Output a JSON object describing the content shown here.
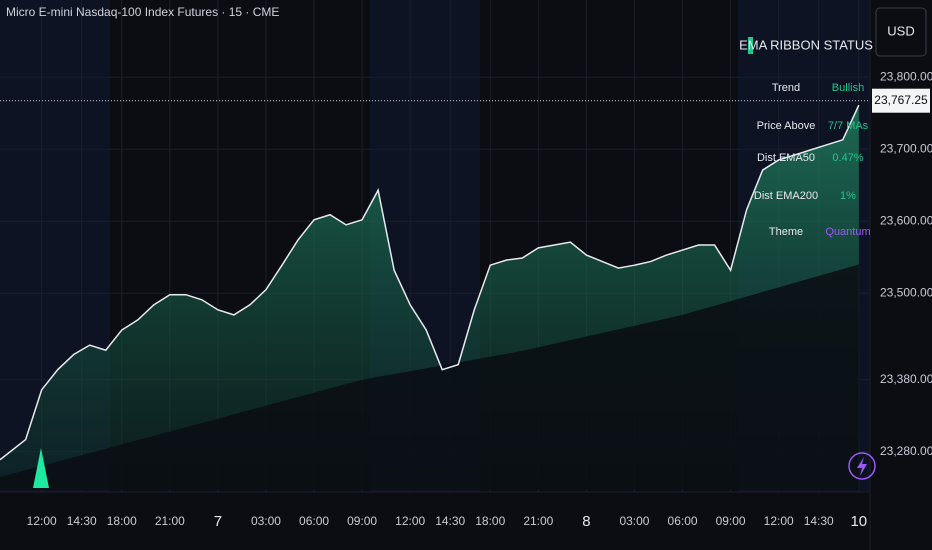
{
  "header": {
    "title": "Micro E-mini Nasdaq-100 Index Futures · 15 · CME",
    "currency": "USD"
  },
  "status_panel": {
    "title": "EMA RIBBON  STATUS",
    "rows": [
      [
        "Trend",
        "Bullish"
      ],
      [
        "Price Above",
        "7/7 MAs"
      ],
      [
        "Dist EMA50",
        "0.47%"
      ],
      [
        "Dist EMA200",
        "1%"
      ],
      [
        "Theme",
        "Quantum"
      ]
    ]
  },
  "chart_data": {
    "type": "line",
    "xlim": [
      -2.6,
      51.7
    ],
    "ylim": [
      23227,
      23907
    ],
    "xticks": [
      {
        "value": 0,
        "label": "12:00"
      },
      {
        "value": 2.5,
        "label": "14:30"
      },
      {
        "value": 5,
        "label": "18:00"
      },
      {
        "value": 8,
        "label": "21:00"
      },
      {
        "value": 11,
        "label": "7"
      },
      {
        "value": 14,
        "label": "03:00"
      },
      {
        "value": 17,
        "label": "06:00"
      },
      {
        "value": 20,
        "label": "09:00"
      },
      {
        "value": 23,
        "label": "12:00"
      },
      {
        "value": 25.5,
        "label": "14:30"
      },
      {
        "value": 28,
        "label": "18:00"
      },
      {
        "value": 31,
        "label": "21:00"
      },
      {
        "value": 34,
        "label": "8"
      },
      {
        "value": 37,
        "label": "03:00"
      },
      {
        "value": 40,
        "label": "06:00"
      },
      {
        "value": 43,
        "label": "09:00"
      },
      {
        "value": 46,
        "label": "12:00"
      },
      {
        "value": 48.5,
        "label": "14:30"
      },
      {
        "value": 51,
        "label": "10"
      }
    ],
    "yticks": [
      {
        "value": 23280,
        "label": "23,280.00"
      },
      {
        "value": 23380,
        "label": "23,380.00"
      },
      {
        "value": 23500,
        "label": "23,500.00"
      },
      {
        "value": 23600,
        "label": "23,600.00"
      },
      {
        "value": 23700,
        "label": "23,700.00"
      },
      {
        "value": 23800,
        "label": "23,800.00"
      }
    ],
    "grid": true,
    "last_price": {
      "value": 23767.25,
      "label": "23,767.25"
    },
    "series": [
      {
        "color": "#e8eaf0",
        "x": [
          -2.6,
          -1,
          0,
          1,
          2,
          3,
          4,
          5,
          6,
          7,
          8,
          9,
          10,
          11,
          12,
          13,
          14,
          15,
          16,
          17,
          18,
          19,
          20,
          21,
          22,
          23,
          24,
          25,
          26,
          27,
          28,
          29,
          30,
          31,
          32,
          33,
          34,
          35,
          36,
          37,
          38,
          39,
          40,
          41,
          42,
          43,
          44,
          45,
          46,
          47,
          48,
          49,
          50,
          51
        ],
        "values": [
          23269,
          23297,
          23366,
          23394,
          23415,
          23428,
          23421,
          23449,
          23463,
          23484,
          23498,
          23498,
          23491,
          23477,
          23470,
          23484,
          23505,
          23539,
          23574,
          23602,
          23609,
          23595,
          23602,
          23643,
          23532,
          23484,
          23449,
          23394,
          23401,
          23477,
          23539,
          23546,
          23549,
          23563,
          23567,
          23571,
          23553,
          23544,
          23535,
          23539,
          23544,
          23553,
          23560,
          23567,
          23567,
          23532,
          23616,
          23671,
          23685,
          23692,
          23699,
          23706,
          23713,
          23761
        ]
      },
      {
        "color": "#0b0d13",
        "x": [
          -2.6,
          10,
          20,
          30,
          40,
          51
        ],
        "values": [
          23245,
          23320,
          23380,
          23420,
          23470,
          23540
        ]
      }
    ]
  }
}
